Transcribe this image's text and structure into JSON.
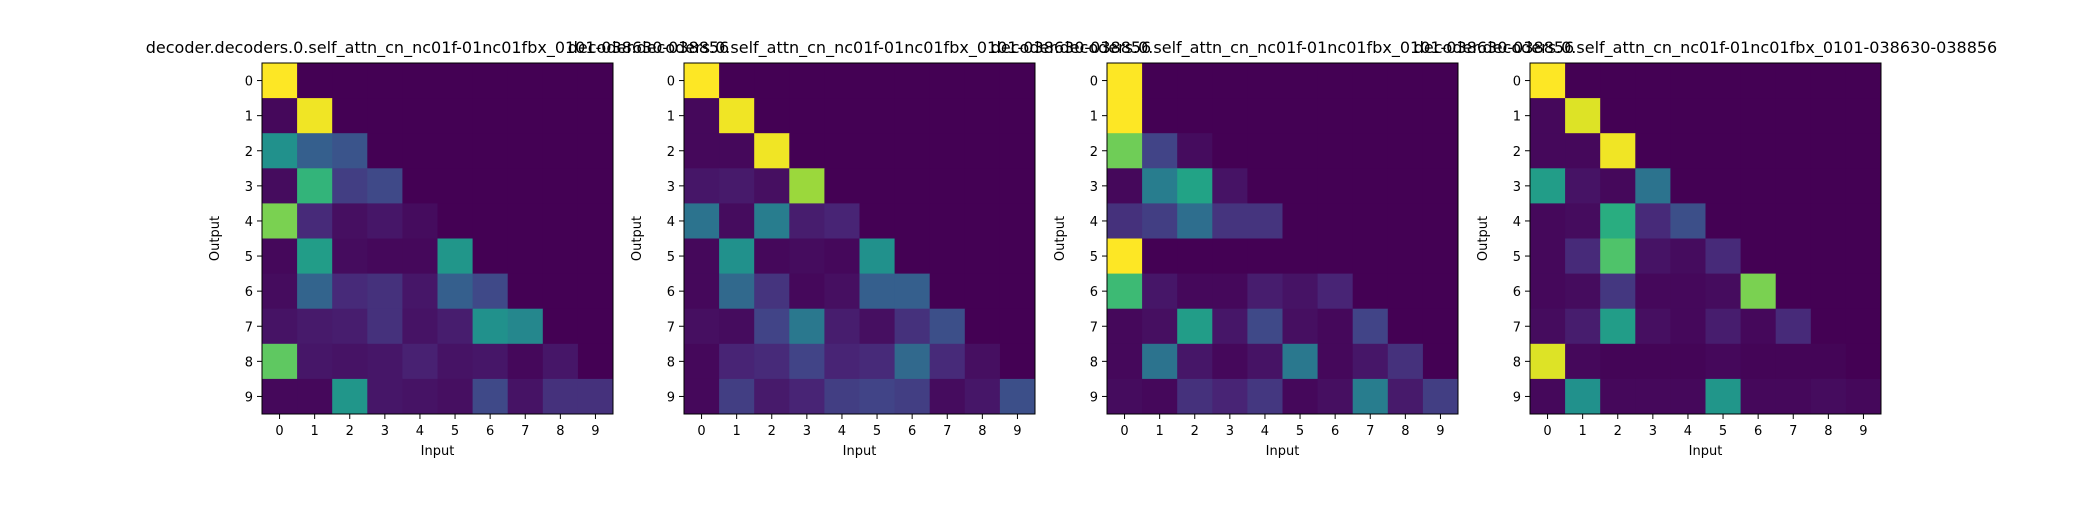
{
  "chart_data": [
    {
      "type": "heatmap",
      "title": "decoder.decoders.0.self_attn_cn_nc01f-01nc01fbx_0101-038630-038856",
      "xlabel": "Input",
      "ylabel": "Output",
      "x_ticks": [
        "0",
        "1",
        "2",
        "3",
        "4",
        "5",
        "6",
        "7",
        "8",
        "9"
      ],
      "y_ticks": [
        "0",
        "1",
        "2",
        "3",
        "4",
        "5",
        "6",
        "7",
        "8",
        "9"
      ],
      "colormap": "viridis",
      "vmin": 0,
      "vmax": 1,
      "values": [
        [
          1.0,
          0,
          0,
          0,
          0,
          0,
          0,
          0,
          0,
          0
        ],
        [
          0.02,
          0.98,
          0,
          0,
          0,
          0,
          0,
          0,
          0,
          0
        ],
        [
          0.5,
          0.3,
          0.26,
          0,
          0,
          0,
          0,
          0,
          0,
          0
        ],
        [
          0.03,
          0.65,
          0.18,
          0.22,
          0,
          0,
          0,
          0,
          0,
          0
        ],
        [
          0.8,
          0.12,
          0.04,
          0.06,
          0.03,
          0,
          0,
          0,
          0,
          0
        ],
        [
          0.02,
          0.55,
          0.03,
          0.02,
          0.02,
          0.52,
          0,
          0,
          0,
          0
        ],
        [
          0.03,
          0.32,
          0.12,
          0.14,
          0.06,
          0.3,
          0.22,
          0,
          0,
          0
        ],
        [
          0.05,
          0.07,
          0.08,
          0.14,
          0.05,
          0.08,
          0.5,
          0.46,
          0,
          0
        ],
        [
          0.75,
          0.06,
          0.05,
          0.06,
          0.09,
          0.05,
          0.06,
          0.02,
          0.06,
          0
        ],
        [
          0.02,
          0.02,
          0.52,
          0.06,
          0.05,
          0.04,
          0.22,
          0.05,
          0.14,
          0.14
        ]
      ]
    },
    {
      "type": "heatmap",
      "title": "decoder.decoders.0.self_attn_cn_nc01f-01nc01fbx_0101-038630-038856",
      "xlabel": "Input",
      "ylabel": "Output",
      "x_ticks": [
        "0",
        "1",
        "2",
        "3",
        "4",
        "5",
        "6",
        "7",
        "8",
        "9"
      ],
      "y_ticks": [
        "0",
        "1",
        "2",
        "3",
        "4",
        "5",
        "6",
        "7",
        "8",
        "9"
      ],
      "colormap": "viridis",
      "vmin": 0,
      "vmax": 1,
      "values": [
        [
          1.0,
          0,
          0,
          0,
          0,
          0,
          0,
          0,
          0,
          0
        ],
        [
          0.02,
          0.98,
          0,
          0,
          0,
          0,
          0,
          0,
          0,
          0
        ],
        [
          0.02,
          0.02,
          0.98,
          0,
          0,
          0,
          0,
          0,
          0,
          0
        ],
        [
          0.06,
          0.07,
          0.04,
          0.85,
          0,
          0,
          0,
          0,
          0,
          0
        ],
        [
          0.38,
          0.03,
          0.42,
          0.08,
          0.1,
          0,
          0,
          0,
          0,
          0
        ],
        [
          0.02,
          0.5,
          0.02,
          0.03,
          0.02,
          0.5,
          0,
          0,
          0,
          0
        ],
        [
          0.02,
          0.34,
          0.15,
          0.02,
          0.04,
          0.3,
          0.3,
          0,
          0,
          0
        ],
        [
          0.04,
          0.03,
          0.2,
          0.4,
          0.08,
          0.04,
          0.14,
          0.24,
          0,
          0
        ],
        [
          0.02,
          0.1,
          0.12,
          0.2,
          0.1,
          0.12,
          0.34,
          0.12,
          0.04,
          0
        ],
        [
          0.02,
          0.18,
          0.07,
          0.1,
          0.18,
          0.2,
          0.18,
          0.03,
          0.06,
          0.24
        ]
      ]
    },
    {
      "type": "heatmap",
      "title": "decoder.decoders.0.self_attn_cn_nc01f-01nc01fbx_0101-038630-038856",
      "xlabel": "Input",
      "ylabel": "Output",
      "x_ticks": [
        "0",
        "1",
        "2",
        "3",
        "4",
        "5",
        "6",
        "7",
        "8",
        "9"
      ],
      "y_ticks": [
        "0",
        "1",
        "2",
        "3",
        "4",
        "5",
        "6",
        "7",
        "8",
        "9"
      ],
      "colormap": "viridis",
      "vmin": 0,
      "vmax": 1,
      "values": [
        [
          1.0,
          0,
          0,
          0,
          0,
          0,
          0,
          0,
          0,
          0
        ],
        [
          1.0,
          0,
          0,
          0,
          0,
          0,
          0,
          0,
          0,
          0
        ],
        [
          0.78,
          0.2,
          0.03,
          0,
          0,
          0,
          0,
          0,
          0,
          0
        ],
        [
          0.02,
          0.42,
          0.58,
          0.05,
          0,
          0,
          0,
          0,
          0,
          0
        ],
        [
          0.14,
          0.18,
          0.36,
          0.15,
          0.15,
          0,
          0,
          0,
          0,
          0
        ],
        [
          1.0,
          0,
          0,
          0,
          0,
          0,
          0,
          0,
          0,
          0
        ],
        [
          0.68,
          0.06,
          0.02,
          0.02,
          0.08,
          0.05,
          0.1,
          0,
          0,
          0
        ],
        [
          0.02,
          0.04,
          0.55,
          0.06,
          0.22,
          0.04,
          0.02,
          0.2,
          0,
          0
        ],
        [
          0.02,
          0.38,
          0.06,
          0.02,
          0.05,
          0.4,
          0.02,
          0.06,
          0.14,
          0
        ],
        [
          0.03,
          0.02,
          0.14,
          0.1,
          0.16,
          0.02,
          0.04,
          0.42,
          0.07,
          0.18
        ]
      ]
    },
    {
      "type": "heatmap",
      "title": "decoder.decoders.0.self_attn_cn_nc01f-01nc01fbx_0101-038630-038856",
      "xlabel": "Input",
      "ylabel": "Output",
      "x_ticks": [
        "0",
        "1",
        "2",
        "3",
        "4",
        "5",
        "6",
        "7",
        "8",
        "9"
      ],
      "y_ticks": [
        "0",
        "1",
        "2",
        "3",
        "4",
        "5",
        "6",
        "7",
        "8",
        "9"
      ],
      "colormap": "viridis",
      "vmin": 0,
      "vmax": 1,
      "values": [
        [
          1.0,
          0,
          0,
          0,
          0,
          0,
          0,
          0,
          0,
          0
        ],
        [
          0.02,
          0.95,
          0,
          0,
          0,
          0,
          0,
          0,
          0,
          0
        ],
        [
          0.02,
          0.02,
          0.98,
          0,
          0,
          0,
          0,
          0,
          0,
          0
        ],
        [
          0.55,
          0.05,
          0.02,
          0.38,
          0,
          0,
          0,
          0,
          0,
          0
        ],
        [
          0.02,
          0.03,
          0.62,
          0.12,
          0.24,
          0,
          0,
          0,
          0,
          0
        ],
        [
          0.02,
          0.12,
          0.72,
          0.05,
          0.03,
          0.12,
          0,
          0,
          0,
          0
        ],
        [
          0.02,
          0.03,
          0.16,
          0.02,
          0.02,
          0.03,
          0.8,
          0,
          0,
          0
        ],
        [
          0.03,
          0.08,
          0.55,
          0.04,
          0.02,
          0.08,
          0.02,
          0.12,
          0,
          0
        ],
        [
          0.95,
          0.02,
          0.01,
          0.01,
          0.01,
          0.02,
          0.01,
          0.01,
          0.01,
          0
        ],
        [
          0.02,
          0.5,
          0.02,
          0.02,
          0.02,
          0.52,
          0.02,
          0.02,
          0.03,
          0.02
        ]
      ]
    }
  ]
}
